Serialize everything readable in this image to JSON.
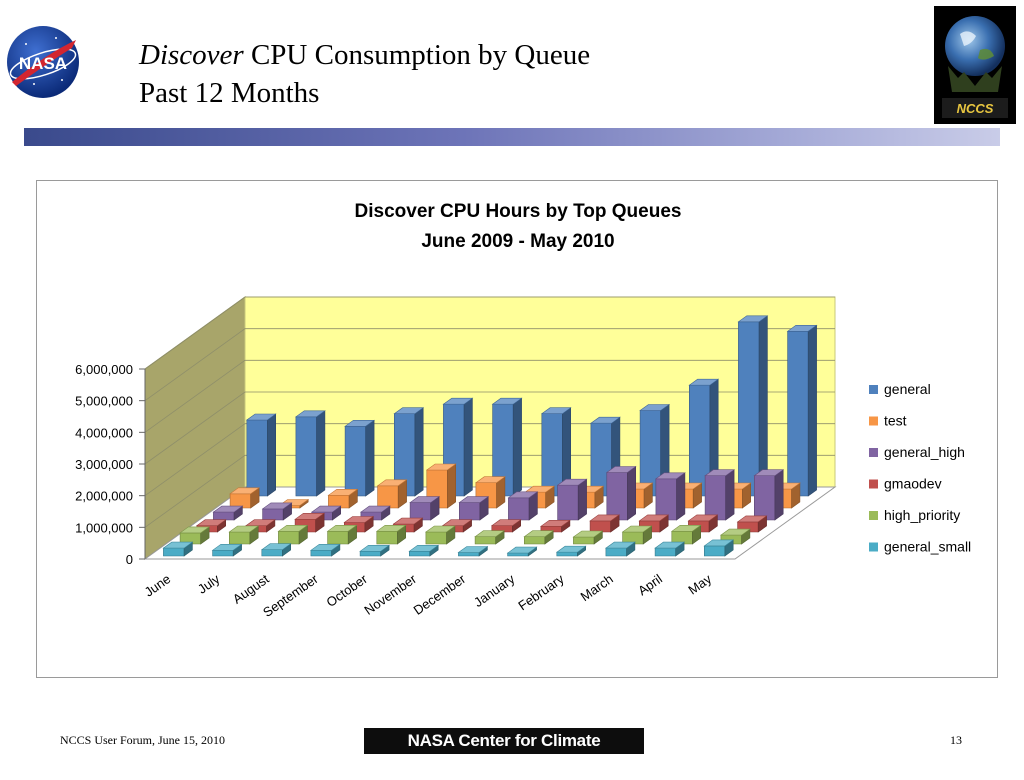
{
  "slide": {
    "title_italic": "Discover",
    "title_rest": " CPU Consumption by Queue",
    "title_line2": "Past 12 Months",
    "footer_text": "NCCS User Forum, June 15, 2010",
    "footer_logo_text": "NASA Center for Climate Simulation",
    "page_number": "13",
    "nasa_logo_text": "NASA",
    "nccs_logo_text": "NCCS"
  },
  "chart_data": {
    "type": "bar",
    "subtype": "3d-clustered-column",
    "title": "Discover CPU Hours by Top Queues",
    "subtitle": "June 2009 - May 2010",
    "categories": [
      "June",
      "July",
      "August",
      "September",
      "October",
      "November",
      "December",
      "January",
      "February",
      "March",
      "April",
      "May"
    ],
    "y_ticks": [
      "0",
      "1,000,000",
      "2,000,000",
      "3,000,000",
      "4,000,000",
      "5,000,000",
      "6,000,000"
    ],
    "ylim": [
      0,
      6000000
    ],
    "grid": true,
    "legend_position": "right",
    "series": [
      {
        "name": "general_small",
        "color": "#4bacc6",
        "values": [
          250000,
          180000,
          200000,
          180000,
          150000,
          150000,
          110000,
          90000,
          120000,
          250000,
          250000,
          320000
        ]
      },
      {
        "name": "high_priority",
        "color": "#9bbb59",
        "values": [
          350000,
          380000,
          400000,
          400000,
          400000,
          380000,
          230000,
          230000,
          220000,
          380000,
          400000,
          280000
        ]
      },
      {
        "name": "gmaodev",
        "color": "#c0504d",
        "values": [
          200000,
          200000,
          400000,
          300000,
          250000,
          200000,
          200000,
          180000,
          350000,
          350000,
          350000,
          320000
        ]
      },
      {
        "name": "general_high",
        "color": "#8064a2",
        "values": [
          250000,
          350000,
          250000,
          250000,
          550000,
          550000,
          700000,
          1100000,
          1500000,
          1300000,
          1400000,
          1400000
        ]
      },
      {
        "name": "test",
        "color": "#f79646",
        "values": [
          450000,
          80000,
          400000,
          700000,
          1200000,
          800000,
          500000,
          500000,
          600000,
          600000,
          600000,
          600000
        ]
      },
      {
        "name": "general",
        "color": "#4f81bd",
        "values": [
          2400000,
          2500000,
          2200000,
          2600000,
          2900000,
          2900000,
          2600000,
          2300000,
          2700000,
          3500000,
          5500000,
          5200000
        ]
      }
    ]
  }
}
